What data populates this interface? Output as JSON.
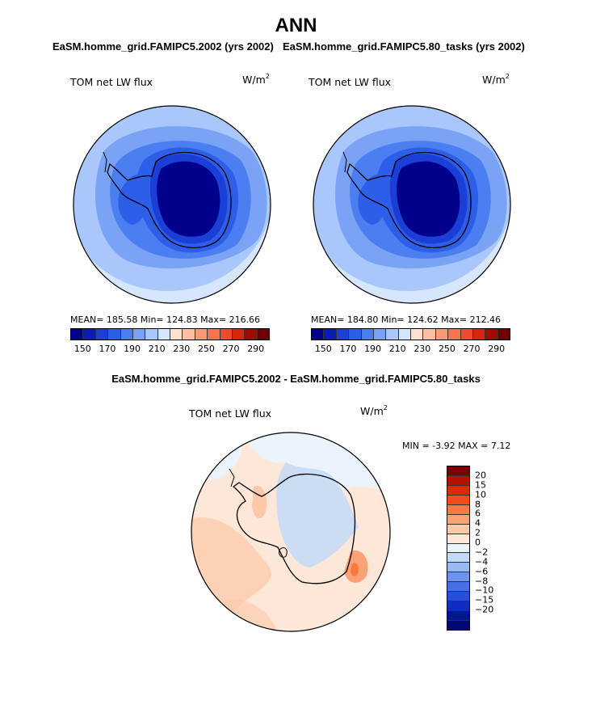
{
  "header": {
    "season": "ANN",
    "left_case": "EaSM.homme_grid.FAMIPC5.2002 (yrs 2002)",
    "right_case": "EaSM.homme_grid.FAMIPC5.80_tasks (yrs 2002)",
    "diff_title": "EaSM.homme_grid.FAMIPC5.2002 - EaSM.homme_grid.FAMIPC5.80_tasks"
  },
  "panels": {
    "left": {
      "label": "TOM net LW flux",
      "units_base": "W/m",
      "units_exp": "2",
      "stats": "MEAN= 185.58   Min= 124.83   Max= 216.66"
    },
    "right": {
      "label": "TOM net LW flux",
      "units_base": "W/m",
      "units_exp": "2",
      "stats": "MEAN= 184.80   Min= 124.62   Max= 212.46"
    },
    "diff": {
      "label": "TOM net LW flux",
      "units_base": "W/m",
      "units_exp": "2",
      "stats": "MIN =   -3.92 MAX =    7.12"
    }
  },
  "colorbar_abs": {
    "colors": [
      "#00008a",
      "#0a1cb4",
      "#1b3ed6",
      "#2d5ee8",
      "#4b7ef0",
      "#7aa2f5",
      "#a9c7fa",
      "#d6e6fc",
      "#fde0d0",
      "#fbbfa3",
      "#f89a75",
      "#f5744d",
      "#ee4b2a",
      "#d6260f",
      "#a00d00",
      "#6e0000"
    ],
    "tick_labels": [
      "150",
      "170",
      "190",
      "210",
      "230",
      "250",
      "270",
      "290"
    ]
  },
  "colorbar_diff": {
    "colors": [
      "#7a0000",
      "#b51200",
      "#de2a04",
      "#f04f1c",
      "#f77a40",
      "#f9a276",
      "#fcc8a8",
      "#fde7d8",
      "#ebf3fd",
      "#c3d9f8",
      "#98b9f3",
      "#6c94ec",
      "#4670e6",
      "#264ee0",
      "#0e2dc4",
      "#00168f",
      "#000a6e"
    ],
    "tick_labels": [
      "20",
      "15",
      "10",
      "8",
      "6",
      "4",
      "2",
      "0",
      "−2",
      "−4",
      "−6",
      "−8",
      "−10",
      "−15",
      "−20"
    ]
  }
}
